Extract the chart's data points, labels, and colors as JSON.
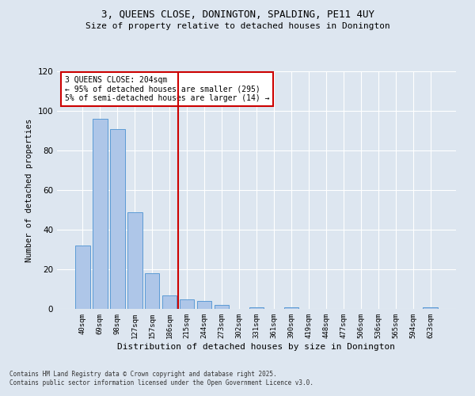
{
  "title_line1": "3, QUEENS CLOSE, DONINGTON, SPALDING, PE11 4UY",
  "title_line2": "Size of property relative to detached houses in Donington",
  "xlabel": "Distribution of detached houses by size in Donington",
  "ylabel": "Number of detached properties",
  "categories": [
    "40sqm",
    "69sqm",
    "98sqm",
    "127sqm",
    "157sqm",
    "186sqm",
    "215sqm",
    "244sqm",
    "273sqm",
    "302sqm",
    "331sqm",
    "361sqm",
    "390sqm",
    "419sqm",
    "448sqm",
    "477sqm",
    "506sqm",
    "536sqm",
    "565sqm",
    "594sqm",
    "623sqm"
  ],
  "values": [
    32,
    96,
    91,
    49,
    18,
    7,
    5,
    4,
    2,
    0,
    1,
    0,
    1,
    0,
    0,
    0,
    0,
    0,
    0,
    0,
    1
  ],
  "bar_color": "#aec6e8",
  "bar_edge_color": "#5b9bd5",
  "background_color": "#dde6f0",
  "grid_color": "#ffffff",
  "vline_color": "#cc0000",
  "annotation_text": "3 QUEENS CLOSE: 204sqm\n← 95% of detached houses are smaller (295)\n5% of semi-detached houses are larger (14) →",
  "annotation_box_color": "#ffffff",
  "annotation_box_edge": "#cc0000",
  "ylim": [
    0,
    120
  ],
  "yticks": [
    0,
    20,
    40,
    60,
    80,
    100,
    120
  ],
  "footer_line1": "Contains HM Land Registry data © Crown copyright and database right 2025.",
  "footer_line2": "Contains public sector information licensed under the Open Government Licence v3.0."
}
